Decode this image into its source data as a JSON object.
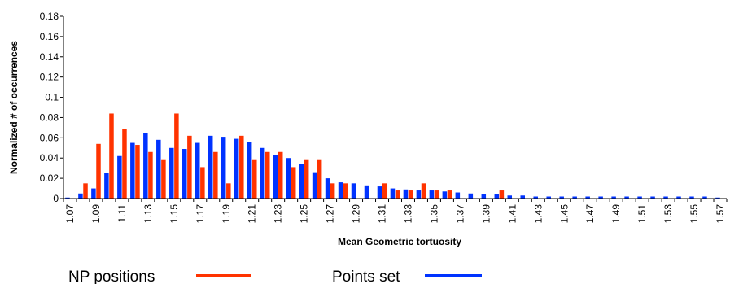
{
  "chart_data": {
    "type": "bar",
    "title": "",
    "xlabel": "Mean Geometric tortuosity",
    "ylabel": "Normalized # of occurrences",
    "ylim": [
      0,
      0.18
    ],
    "yticks": [
      "0",
      "0.02",
      "0.04",
      "0.06",
      "0.08",
      "0.1",
      "0.12",
      "0.14",
      "0.16",
      "0.18"
    ],
    "grid": false,
    "legend_position": "bottom",
    "categories": [
      "1.07",
      "1.08",
      "1.09",
      "1.10",
      "1.11",
      "1.12",
      "1.13",
      "1.14",
      "1.15",
      "1.16",
      "1.17",
      "1.18",
      "1.19",
      "1.20",
      "1.21",
      "1.22",
      "1.23",
      "1.24",
      "1.25",
      "1.26",
      "1.27",
      "1.28",
      "1.29",
      "1.30",
      "1.31",
      "1.32",
      "1.33",
      "1.34",
      "1.35",
      "1.36",
      "1.37",
      "1.38",
      "1.39",
      "1.40",
      "1.41",
      "1.42",
      "1.43",
      "1.44",
      "1.45",
      "1.46",
      "1.47",
      "1.48",
      "1.49",
      "1.50",
      "1.51",
      "1.52",
      "1.53",
      "1.54",
      "1.55",
      "1.56",
      "1.57"
    ],
    "tick_labels": [
      "1.07",
      "",
      "1.09",
      "",
      "1.11",
      "",
      "1.13",
      "",
      "1.15",
      "",
      "1.17",
      "",
      "1.19",
      "",
      "1.21",
      "",
      "1.23",
      "",
      "1.25",
      "",
      "1.27",
      "",
      "1.29",
      "",
      "1.31",
      "",
      "1.33",
      "",
      "1.35",
      "",
      "1.37",
      "",
      "1.39",
      "",
      "1.41",
      "",
      "1.43",
      "",
      "1.45",
      "",
      "1.47",
      "",
      "1.49",
      "",
      "1.51",
      "",
      "1.53",
      "",
      "1.55",
      "",
      "1.57"
    ],
    "series": [
      {
        "name": "Points set",
        "color": "#0033ff",
        "values": [
          0.001,
          0.005,
          0.01,
          0.025,
          0.042,
          0.055,
          0.065,
          0.058,
          0.05,
          0.049,
          0.055,
          0.062,
          0.061,
          0.059,
          0.056,
          0.05,
          0.043,
          0.04,
          0.034,
          0.026,
          0.02,
          0.016,
          0.015,
          0.013,
          0.012,
          0.01,
          0.009,
          0.008,
          0.008,
          0.007,
          0.006,
          0.005,
          0.004,
          0.004,
          0.003,
          0.003,
          0.002,
          0.002,
          0.002,
          0.002,
          0.002,
          0.002,
          0.002,
          0.002,
          0.002,
          0.002,
          0.002,
          0.002,
          0.002,
          0.002,
          0.001
        ]
      },
      {
        "name": "NP positions",
        "color": "#ff3300",
        "values": [
          0,
          0.015,
          0.054,
          0.084,
          0.069,
          0.053,
          0.046,
          0.038,
          0.084,
          0.062,
          0.031,
          0.046,
          0.015,
          0.062,
          0.038,
          0.046,
          0.046,
          0.031,
          0.038,
          0.038,
          0.015,
          0.015,
          0,
          0,
          0.015,
          0.008,
          0.008,
          0.015,
          0.008,
          0.008,
          0,
          0,
          0,
          0.008,
          0,
          0,
          0,
          0,
          0,
          0,
          0,
          0,
          0,
          0,
          0,
          0,
          0,
          0,
          0,
          0,
          0
        ]
      }
    ]
  },
  "legend": {
    "items": [
      {
        "label": "NP positions",
        "color": "#ff3300"
      },
      {
        "label": "Points set",
        "color": "#0033ff"
      }
    ]
  }
}
